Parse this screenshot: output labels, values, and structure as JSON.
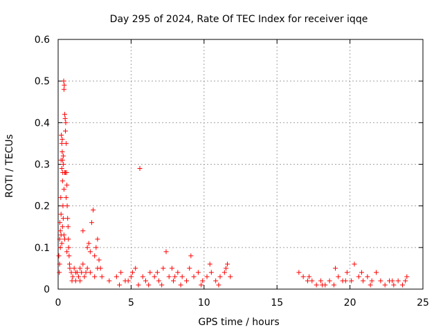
{
  "chart_data": {
    "type": "scatter",
    "title": "Day 295 of 2024, Rate Of TEC Index for receiver iqqe",
    "xlabel": "GPS time / hours",
    "ylabel": "ROTI / TECUs",
    "xlim": [
      0,
      25
    ],
    "ylim": [
      0,
      0.6
    ],
    "xticks": [
      "0",
      "5",
      "10",
      "15",
      "20",
      "25"
    ],
    "yticks": [
      "0",
      "0.1",
      "0.2",
      "0.3",
      "0.4",
      "0.5",
      "0.6"
    ],
    "grid": true,
    "marker": "plus",
    "color": "#ff0000",
    "series": [
      {
        "points": [
          [
            0.05,
            0.08
          ],
          [
            0.1,
            0.12
          ],
          [
            0.12,
            0.16
          ],
          [
            0.15,
            0.14
          ],
          [
            0.18,
            0.22
          ],
          [
            0.2,
            0.31
          ],
          [
            0.22,
            0.37
          ],
          [
            0.25,
            0.35
          ],
          [
            0.28,
            0.33
          ],
          [
            0.3,
            0.26
          ],
          [
            0.32,
            0.28
          ],
          [
            0.35,
            0.3
          ],
          [
            0.38,
            0.5
          ],
          [
            0.4,
            0.48
          ],
          [
            0.42,
            0.49
          ],
          [
            0.45,
            0.42
          ],
          [
            0.48,
            0.41
          ],
          [
            0.5,
            0.38
          ],
          [
            0.52,
            0.4
          ],
          [
            0.55,
            0.35
          ],
          [
            0.58,
            0.28
          ],
          [
            0.6,
            0.25
          ],
          [
            0.62,
            0.2
          ],
          [
            0.65,
            0.17
          ],
          [
            0.68,
            0.15
          ],
          [
            0.7,
            0.12
          ],
          [
            0.72,
            0.1
          ],
          [
            0.75,
            0.08
          ],
          [
            0.78,
            0.06
          ],
          [
            0.8,
            0.05
          ],
          [
            0.25,
            0.29
          ],
          [
            0.3,
            0.31
          ],
          [
            0.35,
            0.32
          ],
          [
            0.28,
            0.36
          ],
          [
            0.45,
            0.28
          ],
          [
            0.5,
            0.28
          ],
          [
            0.55,
            0.22
          ],
          [
            0.4,
            0.24
          ],
          [
            0.33,
            0.2
          ],
          [
            0.2,
            0.18
          ],
          [
            0.15,
            0.1
          ],
          [
            0.1,
            0.06
          ],
          [
            0.08,
            0.04
          ],
          [
            0.2,
            0.13
          ],
          [
            0.25,
            0.11
          ],
          [
            0.3,
            0.15
          ],
          [
            0.35,
            0.17
          ],
          [
            0.4,
            0.13
          ],
          [
            0.45,
            0.12
          ],
          [
            0.6,
            0.09
          ],
          [
            0.9,
            0.04
          ],
          [
            1.0,
            0.03
          ],
          [
            1.1,
            0.05
          ],
          [
            1.2,
            0.02
          ],
          [
            1.3,
            0.04
          ],
          [
            1.4,
            0.03
          ],
          [
            1.5,
            0.05
          ],
          [
            1.6,
            0.04
          ],
          [
            1.7,
            0.06
          ],
          [
            1.8,
            0.03
          ],
          [
            1.9,
            0.04
          ],
          [
            2.0,
            0.05
          ],
          [
            2.1,
            0.11
          ],
          [
            2.2,
            0.09
          ],
          [
            2.3,
            0.16
          ],
          [
            2.4,
            0.19
          ],
          [
            2.5,
            0.08
          ],
          [
            2.6,
            0.1
          ],
          [
            2.7,
            0.12
          ],
          [
            2.8,
            0.07
          ],
          [
            2.9,
            0.05
          ],
          [
            3.0,
            0.03
          ],
          [
            1.7,
            0.14
          ],
          [
            2.0,
            0.1
          ],
          [
            2.2,
            0.04
          ],
          [
            2.5,
            0.03
          ],
          [
            2.7,
            0.05
          ],
          [
            1.5,
            0.02
          ],
          [
            1.2,
            0.04
          ],
          [
            0.95,
            0.02
          ],
          [
            3.5,
            0.02
          ],
          [
            4.0,
            0.03
          ],
          [
            4.3,
            0.04
          ],
          [
            4.6,
            0.02
          ],
          [
            5.0,
            0.03
          ],
          [
            5.3,
            0.05
          ],
          [
            5.6,
            0.29
          ],
          [
            5.8,
            0.03
          ],
          [
            6.0,
            0.02
          ],
          [
            6.3,
            0.04
          ],
          [
            6.6,
            0.03
          ],
          [
            6.9,
            0.02
          ],
          [
            7.2,
            0.05
          ],
          [
            7.4,
            0.09
          ],
          [
            7.6,
            0.03
          ],
          [
            7.9,
            0.02
          ],
          [
            8.2,
            0.04
          ],
          [
            8.5,
            0.03
          ],
          [
            8.8,
            0.02
          ],
          [
            9.1,
            0.08
          ],
          [
            9.3,
            0.03
          ],
          [
            9.6,
            0.04
          ],
          [
            9.9,
            0.02
          ],
          [
            10.2,
            0.03
          ],
          [
            10.5,
            0.04
          ],
          [
            10.8,
            0.02
          ],
          [
            11.1,
            0.03
          ],
          [
            11.4,
            0.04
          ],
          [
            11.6,
            0.06
          ],
          [
            11.8,
            0.03
          ],
          [
            4.2,
            0.01
          ],
          [
            4.8,
            0.02
          ],
          [
            5.5,
            0.01
          ],
          [
            6.2,
            0.01
          ],
          [
            6.8,
            0.04
          ],
          [
            7.1,
            0.01
          ],
          [
            7.8,
            0.05
          ],
          [
            8.4,
            0.01
          ],
          [
            9.0,
            0.05
          ],
          [
            9.8,
            0.01
          ],
          [
            10.4,
            0.06
          ],
          [
            11.0,
            0.01
          ],
          [
            11.5,
            0.05
          ],
          [
            5.1,
            0.04
          ],
          [
            8.0,
            0.03
          ],
          [
            16.5,
            0.04
          ],
          [
            16.8,
            0.03
          ],
          [
            17.1,
            0.02
          ],
          [
            17.4,
            0.02
          ],
          [
            17.7,
            0.01
          ],
          [
            18.0,
            0.02
          ],
          [
            18.3,
            0.01
          ],
          [
            18.6,
            0.02
          ],
          [
            18.9,
            0.01
          ],
          [
            19.0,
            0.05
          ],
          [
            19.2,
            0.03
          ],
          [
            19.5,
            0.02
          ],
          [
            19.8,
            0.04
          ],
          [
            20.1,
            0.02
          ],
          [
            20.3,
            0.06
          ],
          [
            20.6,
            0.03
          ],
          [
            20.9,
            0.02
          ],
          [
            21.2,
            0.03
          ],
          [
            21.5,
            0.02
          ],
          [
            21.8,
            0.04
          ],
          [
            22.1,
            0.02
          ],
          [
            22.4,
            0.01
          ],
          [
            22.7,
            0.02
          ],
          [
            23.0,
            0.01
          ],
          [
            23.3,
            0.02
          ],
          [
            23.6,
            0.01
          ],
          [
            23.9,
            0.03
          ],
          [
            17.2,
            0.03
          ],
          [
            18.1,
            0.01
          ],
          [
            19.7,
            0.02
          ],
          [
            20.8,
            0.04
          ],
          [
            21.4,
            0.01
          ],
          [
            22.9,
            0.02
          ],
          [
            23.8,
            0.02
          ]
        ]
      }
    ]
  }
}
